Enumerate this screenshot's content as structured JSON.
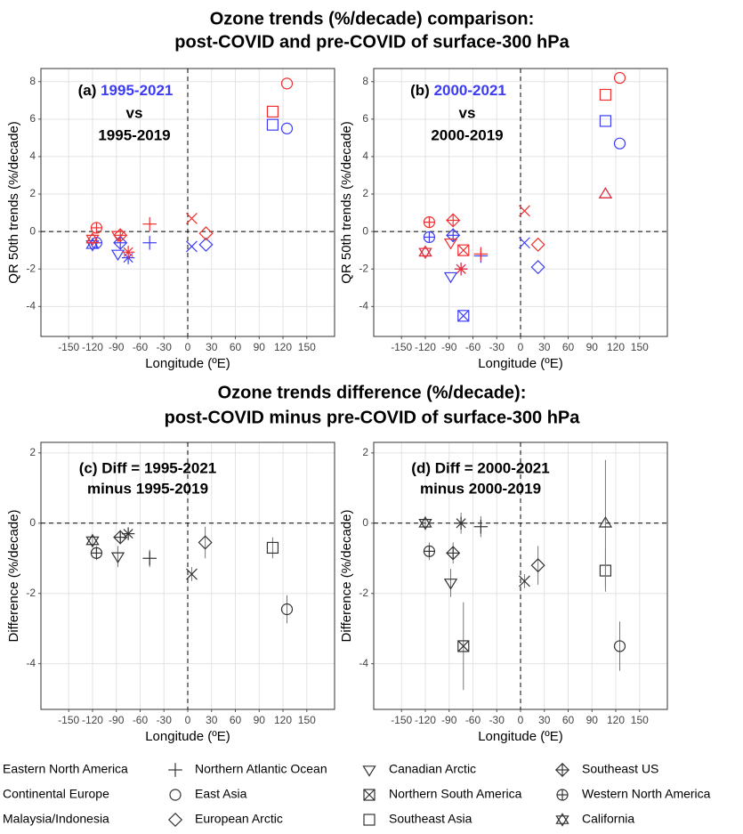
{
  "chart_data": [
    {
      "type": "scatter",
      "title": [
        "Ozone trends (%/decade) comparison:",
        "post-COVID and pre-COVID of surface-300 hPa"
      ],
      "panel_label": "(a)",
      "vs": "vs",
      "x_label": "Longitude (ºE)",
      "y_label": "QR 50th trends (%/decade)",
      "xlim": [
        -185,
        185
      ],
      "xticks": [
        -150,
        -120,
        -90,
        -60,
        -30,
        0,
        30,
        60,
        90,
        120,
        150
      ],
      "ylim": [
        -5.6,
        8.7
      ],
      "yticks": [
        -4,
        -2,
        0,
        2,
        4,
        6,
        8
      ],
      "grid": true,
      "hline": 0,
      "vline": 0,
      "series": [
        {
          "name": "1995-2021",
          "color": "#3c3cf5",
          "points": [
            {
              "region": "East Asia",
              "x": 125,
              "y": 5.5
            },
            {
              "region": "Southeast Asia",
              "x": 107,
              "y": 5.7
            },
            {
              "region": "European Arctic",
              "x": 23,
              "y": -0.7
            },
            {
              "region": "Continental Europe",
              "x": 5,
              "y": -0.8
            },
            {
              "region": "Northern Atlantic Ocean",
              "x": -48,
              "y": -0.6
            },
            {
              "region": "Eastern North America",
              "x": -75,
              "y": -1.4
            },
            {
              "region": "Canadian Arctic",
              "x": -88,
              "y": -1.2
            },
            {
              "region": "Southeast US",
              "x": -85,
              "y": -0.6
            },
            {
              "region": "Western North America",
              "x": -115,
              "y": -0.6
            },
            {
              "region": "California",
              "x": -120,
              "y": -0.7
            }
          ]
        },
        {
          "name": "1995-2019",
          "color": "#f03030",
          "points": [
            {
              "region": "East Asia",
              "x": 125,
              "y": 7.9
            },
            {
              "region": "Southeast Asia",
              "x": 107,
              "y": 6.4
            },
            {
              "region": "European Arctic",
              "x": 23,
              "y": -0.1
            },
            {
              "region": "Continental Europe",
              "x": 5,
              "y": 0.7
            },
            {
              "region": "Northern Atlantic Ocean",
              "x": -48,
              "y": 0.4
            },
            {
              "region": "Eastern North America",
              "x": -75,
              "y": -1.1
            },
            {
              "region": "Canadian Arctic",
              "x": -88,
              "y": -0.2
            },
            {
              "region": "Southeast US",
              "x": -85,
              "y": -0.2
            },
            {
              "region": "Western North America",
              "x": -115,
              "y": 0.2
            },
            {
              "region": "California",
              "x": -120,
              "y": -0.4
            }
          ]
        }
      ]
    },
    {
      "type": "scatter",
      "panel_label": "(b)",
      "vs": "vs",
      "x_label": "Longitude (ºE)",
      "y_label": "QR 50th trends (%/decade)",
      "xlim": [
        -185,
        185
      ],
      "xticks": [
        -150,
        -120,
        -90,
        -60,
        -30,
        0,
        30,
        60,
        90,
        120,
        150
      ],
      "ylim": [
        -5.6,
        8.7
      ],
      "yticks": [
        -4,
        -2,
        0,
        2,
        4,
        6,
        8
      ],
      "grid": true,
      "hline": 0,
      "vline": 0,
      "series": [
        {
          "name": "2000-2021",
          "color": "#3c3cf5",
          "points": [
            {
              "region": "East Asia",
              "x": 125,
              "y": 4.7
            },
            {
              "region": "Southeast Asia",
              "x": 107,
              "y": 5.9
            },
            {
              "region": "Malaysia/Indonesia",
              "x": 107,
              "y": 2.0
            },
            {
              "region": "European Arctic",
              "x": 22,
              "y": -1.9
            },
            {
              "region": "Continental Europe",
              "x": 5,
              "y": -0.6
            },
            {
              "region": "Northern Atlantic Ocean",
              "x": -50,
              "y": -1.3
            },
            {
              "region": "Eastern North America",
              "x": -75,
              "y": -2.0
            },
            {
              "region": "Northern South America",
              "x": -72,
              "y": -4.5
            },
            {
              "region": "Canadian Arctic",
              "x": -88,
              "y": -2.4
            },
            {
              "region": "Southeast US",
              "x": -85,
              "y": -0.2
            },
            {
              "region": "Western North America",
              "x": -115,
              "y": -0.3
            },
            {
              "region": "California",
              "x": -120,
              "y": -1.1
            }
          ]
        },
        {
          "name": "2000-2019",
          "color": "#f03030",
          "points": [
            {
              "region": "East Asia",
              "x": 125,
              "y": 8.2
            },
            {
              "region": "Southeast Asia",
              "x": 107,
              "y": 7.3
            },
            {
              "region": "Malaysia/Indonesia",
              "x": 107,
              "y": 2.0
            },
            {
              "region": "European Arctic",
              "x": 22,
              "y": -0.7
            },
            {
              "region": "Continental Europe",
              "x": 5,
              "y": 1.1
            },
            {
              "region": "Northern Atlantic Ocean",
              "x": -50,
              "y": -1.2
            },
            {
              "region": "Eastern North America",
              "x": -75,
              "y": -2.0
            },
            {
              "region": "Northern South America",
              "x": -72,
              "y": -1.0
            },
            {
              "region": "Canadian Arctic",
              "x": -88,
              "y": -0.6
            },
            {
              "region": "Southeast US",
              "x": -85,
              "y": 0.6
            },
            {
              "region": "Western North America",
              "x": -115,
              "y": 0.5
            },
            {
              "region": "California",
              "x": -120,
              "y": -1.1
            }
          ]
        }
      ]
    },
    {
      "type": "errorbar",
      "title": [
        "Ozone trends difference (%/decade):",
        "post-COVID minus pre-COVID of surface-300 hPa"
      ],
      "annotation": [
        "(c) Diff = 1995-2021",
        "minus 1995-2019"
      ],
      "x_label": "Longitude (ºE)",
      "y_label": "Difference (%/decade)",
      "xlim": [
        -185,
        185
      ],
      "xticks": [
        -150,
        -120,
        -90,
        -60,
        -30,
        0,
        30,
        60,
        90,
        120,
        150
      ],
      "ylim": [
        -5.3,
        2.3
      ],
      "yticks": [
        -4,
        -2,
        0,
        2
      ],
      "grid": true,
      "hline": 0,
      "vline": 0,
      "series": [
        {
          "color": "#333333",
          "points": [
            {
              "region": "California",
              "x": -120,
              "y": -0.5,
              "error": 0.2
            },
            {
              "region": "Western North America",
              "x": -115,
              "y": -0.85,
              "error": 0.2
            },
            {
              "region": "Southeast US",
              "x": -85,
              "y": -0.4,
              "error": 0.2
            },
            {
              "region": "Canadian Arctic",
              "x": -88,
              "y": -0.95,
              "error": 0.3
            },
            {
              "region": "Eastern North America",
              "x": -75,
              "y": -0.3,
              "error": 0.15
            },
            {
              "region": "Northern Atlantic Ocean",
              "x": -48,
              "y": -1.0,
              "error": 0.25
            },
            {
              "region": "Continental Europe",
              "x": 5,
              "y": -1.45,
              "error": 0.2
            },
            {
              "region": "European Arctic",
              "x": 22,
              "y": -0.55,
              "error": 0.45
            },
            {
              "region": "Southeast Asia",
              "x": 107,
              "y": -0.7,
              "error": 0.3
            },
            {
              "region": "East Asia",
              "x": 125,
              "y": -2.45,
              "error": 0.4
            }
          ]
        }
      ]
    },
    {
      "type": "errorbar",
      "annotation": [
        "(d) Diff = 2000-2021",
        "minus 2000-2019"
      ],
      "x_label": "Longitude (ºE)",
      "y_label": "Difference (%/decade)",
      "xlim": [
        -185,
        185
      ],
      "xticks": [
        -150,
        -120,
        -90,
        -60,
        -30,
        0,
        30,
        60,
        90,
        120,
        150
      ],
      "ylim": [
        -5.3,
        2.3
      ],
      "yticks": [
        -4,
        -2,
        0,
        2
      ],
      "grid": true,
      "hline": 0,
      "vline": 0,
      "series": [
        {
          "color": "#333333",
          "points": [
            {
              "region": "California",
              "x": -120,
              "y": 0.0,
              "error": 0.2
            },
            {
              "region": "Western North America",
              "x": -115,
              "y": -0.8,
              "error": 0.25
            },
            {
              "region": "Southeast US",
              "x": -85,
              "y": -0.85,
              "error": 0.3
            },
            {
              "region": "Canadian Arctic",
              "x": -88,
              "y": -1.7,
              "error": 0.4
            },
            {
              "region": "Northern South America",
              "x": -72,
              "y": -3.5,
              "error": 1.25
            },
            {
              "region": "Eastern North America",
              "x": -75,
              "y": 0.0,
              "error": 0.3
            },
            {
              "region": "Northern Atlantic Ocean",
              "x": -50,
              "y": -0.1,
              "error": 0.3
            },
            {
              "region": "Continental Europe",
              "x": 5,
              "y": -1.65,
              "error": 0.2
            },
            {
              "region": "European Arctic",
              "x": 22,
              "y": -1.2,
              "error": 0.55
            },
            {
              "region": "Southeast Asia",
              "x": 107,
              "y": -1.35,
              "error": 0.6
            },
            {
              "region": "Malaysia/Indonesia",
              "x": 107,
              "y": 0.0,
              "error": 1.8
            },
            {
              "region": "East Asia",
              "x": 125,
              "y": -3.5,
              "error": 0.7
            }
          ]
        }
      ]
    }
  ],
  "legend": [
    {
      "name": "Eastern North America",
      "marker": "asterisk"
    },
    {
      "name": "Northern Atlantic Ocean",
      "marker": "plus"
    },
    {
      "name": "Canadian Arctic",
      "marker": "triangle-down"
    },
    {
      "name": "Southeast US",
      "marker": "diamond-plus"
    },
    {
      "name": "Continental Europe",
      "marker": "x"
    },
    {
      "name": "East Asia",
      "marker": "circle"
    },
    {
      "name": "Northern South America",
      "marker": "square-x"
    },
    {
      "name": "Western North America",
      "marker": "circle-plus"
    },
    {
      "name": "Malaysia/Indonesia",
      "marker": "triangle-up"
    },
    {
      "name": "European Arctic",
      "marker": "diamond"
    },
    {
      "name": "Southeast Asia",
      "marker": "square"
    },
    {
      "name": "California",
      "marker": "star-of-david"
    }
  ]
}
